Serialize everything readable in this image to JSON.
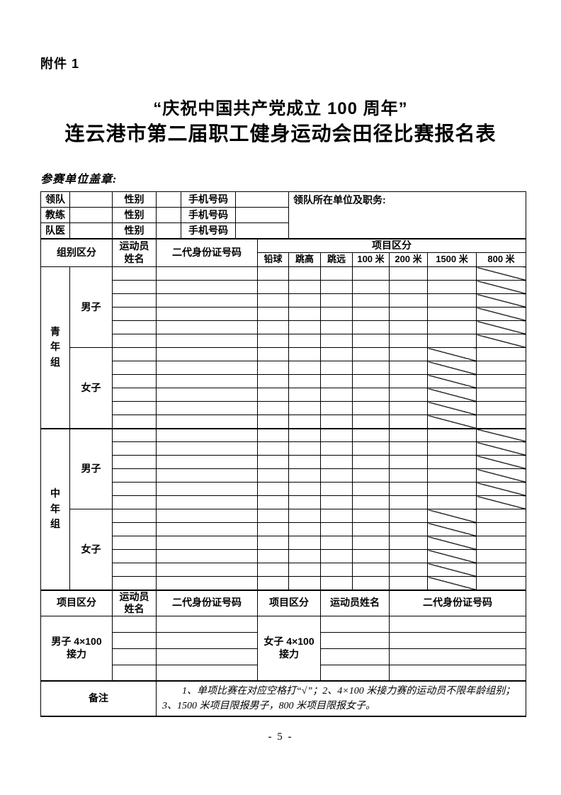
{
  "page": {
    "attachment_label": "附件 1",
    "title_line1": "“庆祝中国共产党成立 100 周年”",
    "title_line2": "连云港市第二届职工健身运动会田径比赛报名表",
    "seal_label": "参赛单位盖章:",
    "page_number": "- 5 -",
    "colors": {
      "border": "#000000",
      "text": "#000000",
      "background": "#ffffff"
    }
  },
  "staff": {
    "rows": [
      {
        "role": "领队",
        "gender_label": "性别",
        "phone_label": "手机号码"
      },
      {
        "role": "教练",
        "gender_label": "性别",
        "phone_label": "手机号码"
      },
      {
        "role": "队医",
        "gender_label": "性别",
        "phone_label": "手机号码"
      }
    ],
    "unit_label": "领队所在单位及职务:"
  },
  "roster": {
    "group_header": "组别区分",
    "name_header": "运动员\n姓名",
    "id_header": "二代身份证号码",
    "events_header": "项目区分",
    "events": [
      "铅球",
      "跳高",
      "跳远",
      "100 米",
      "200 米",
      "1500 米",
      "800 米"
    ],
    "groups": [
      {
        "label": "青年组",
        "subgroups": [
          {
            "label": "男子",
            "rows": 6,
            "crossed_event": "800 米"
          },
          {
            "label": "女子",
            "rows": 6,
            "crossed_event": "1500 米"
          }
        ]
      },
      {
        "label": "中年组",
        "subgroups": [
          {
            "label": "男子",
            "rows": 6,
            "crossed_event": "800 米"
          },
          {
            "label": "女子",
            "rows": 6,
            "crossed_event": "1500 米"
          }
        ]
      }
    ]
  },
  "relay": {
    "event_header_left": "项目区分",
    "name_header_left": "运动员\n姓名",
    "id_header_left": "二代身份证号码",
    "event_header_right": "项目区分",
    "name_header_right": "运动员姓名",
    "id_header_right": "二代身份证号码",
    "left_event": "男子 4×100\n接力",
    "right_event": "女子 4×100\n接力",
    "rows": 4
  },
  "remarks": {
    "label": "备注",
    "text": "1、单项比赛在对应空格打“√”；2、4×100 米接力赛的运动员不限年龄组别；3、1500 米项目限报男子，800 米项目限报女子。"
  }
}
